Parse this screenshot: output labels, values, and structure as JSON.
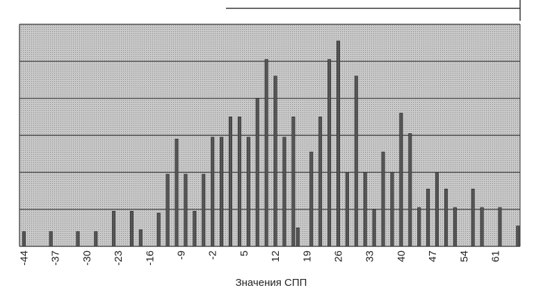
{
  "chart_data": {
    "type": "bar",
    "xlabel": "Значения СПП",
    "x": [
      -44,
      -38,
      -32,
      -28,
      -24,
      -20,
      -18,
      -14,
      -12,
      -10,
      -8,
      -6,
      -4,
      -2,
      0,
      2,
      4,
      6,
      8,
      10,
      12,
      14,
      16,
      17,
      20,
      22,
      24,
      26,
      28,
      30,
      32,
      34,
      36,
      38,
      40,
      42,
      44,
      46,
      48,
      50,
      52,
      56,
      58,
      62,
      66
    ],
    "values": [
      0.4,
      0.4,
      0.4,
      0.4,
      0.95,
      0.95,
      0.45,
      0.9,
      1.95,
      2.9,
      1.95,
      0.95,
      1.95,
      2.95,
      2.95,
      3.5,
      3.5,
      2.95,
      4.0,
      5.05,
      4.6,
      2.95,
      3.5,
      0.5,
      2.55,
      3.5,
      5.05,
      5.55,
      2.0,
      4.6,
      2.0,
      1.0,
      2.55,
      2.0,
      3.6,
      3.05,
      1.05,
      1.55,
      2.0,
      1.55,
      1.05,
      1.55,
      1.05,
      1.05,
      0.55
    ],
    "color": "#555555",
    "xlim": [
      -45,
      66.5
    ],
    "xticks": [
      -44,
      -37,
      -30,
      -23,
      -16,
      -9,
      -2,
      5,
      12,
      19,
      26,
      33,
      40,
      47,
      54,
      61
    ],
    "ylim": [
      0,
      6
    ],
    "yticks": [
      0,
      1,
      2,
      3,
      4,
      5,
      6
    ],
    "grid": true
  }
}
